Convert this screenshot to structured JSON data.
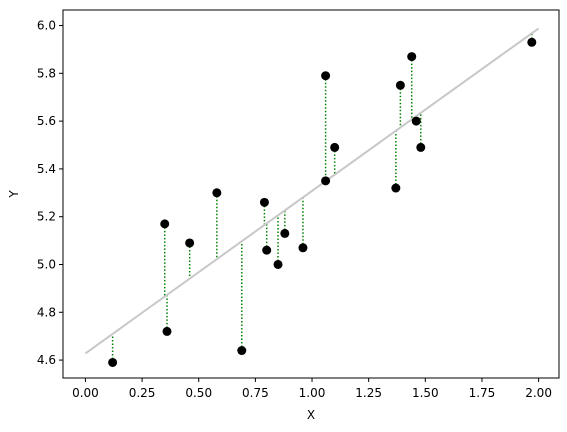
{
  "chart_data": {
    "type": "scatter",
    "title": "",
    "xlabel": "X",
    "ylabel": "Y",
    "xlim": [
      -0.099,
      2.09
    ],
    "ylim": [
      4.525,
      6.065
    ],
    "xticks": [
      0.0,
      0.25,
      0.5,
      0.75,
      1.0,
      1.25,
      1.5,
      1.75,
      2.0
    ],
    "xtick_labels": [
      "0.00",
      "0.25",
      "0.50",
      "0.75",
      "1.00",
      "1.25",
      "1.50",
      "1.75",
      "2.00"
    ],
    "yticks": [
      4.6,
      4.8,
      5.0,
      5.2,
      5.4,
      5.6,
      5.8,
      6.0
    ],
    "ytick_labels": [
      "4.6",
      "4.8",
      "5.0",
      "5.2",
      "5.4",
      "5.6",
      "5.8",
      "6.0"
    ],
    "grid": false,
    "legend": false,
    "points": {
      "x": [
        0.12,
        0.35,
        0.36,
        0.46,
        0.58,
        0.69,
        0.79,
        0.8,
        0.85,
        0.88,
        0.96,
        1.06,
        1.06,
        1.1,
        1.37,
        1.39,
        1.44,
        1.46,
        1.48,
        1.97
      ],
      "y": [
        4.59,
        5.17,
        4.72,
        5.09,
        5.3,
        4.64,
        5.26,
        5.06,
        5.0,
        5.13,
        5.07,
        5.79,
        5.35,
        5.49,
        5.32,
        5.75,
        5.87,
        5.6,
        5.49,
        5.93
      ]
    },
    "fit_line": {
      "x": [
        0.0,
        2.0
      ],
      "y": [
        4.628,
        5.988
      ]
    },
    "colors": {
      "points": "#000000",
      "fit_line": "#c8c8c8",
      "residuals": "#008000"
    }
  }
}
